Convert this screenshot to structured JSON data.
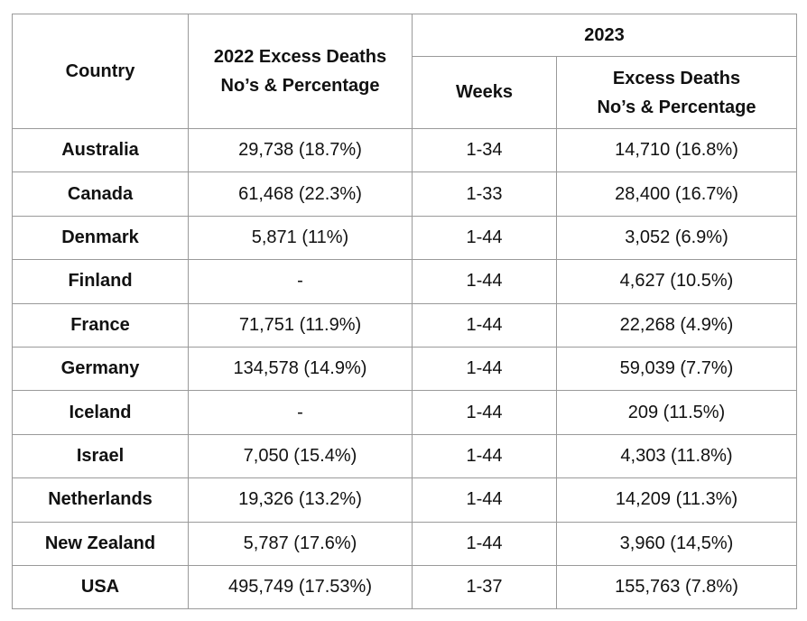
{
  "table": {
    "headers": {
      "country": "Country",
      "excess_2022_line1": "2022 Excess Deaths",
      "excess_2022_line2": "No’s & Percentage",
      "year_2023": "2023",
      "weeks": "Weeks",
      "excess_2023_line1": "Excess Deaths",
      "excess_2023_line2": "No’s & Percentage"
    },
    "rows": [
      {
        "country": "Australia",
        "excess_2022": "29,738 (18.7%)",
        "weeks": "1-34",
        "excess_2023": "14,710 (16.8%)"
      },
      {
        "country": "Canada",
        "excess_2022": "61,468 (22.3%)",
        "weeks": "1-33",
        "excess_2023": "28,400 (16.7%)"
      },
      {
        "country": "Denmark",
        "excess_2022": "5,871 (11%)",
        "weeks": "1-44",
        "excess_2023": "3,052 (6.9%)"
      },
      {
        "country": "Finland",
        "excess_2022": "-",
        "weeks": "1-44",
        "excess_2023": "4,627 (10.5%)"
      },
      {
        "country": "France",
        "excess_2022": "71,751 (11.9%)",
        "weeks": "1-44",
        "excess_2023": "22,268 (4.9%)"
      },
      {
        "country": "Germany",
        "excess_2022": "134,578 (14.9%)",
        "weeks": "1-44",
        "excess_2023": "59,039 (7.7%)"
      },
      {
        "country": "Iceland",
        "excess_2022": "-",
        "weeks": "1-44",
        "excess_2023": "209 (11.5%)"
      },
      {
        "country": "Israel",
        "excess_2022": "7,050 (15.4%)",
        "weeks": "1-44",
        "excess_2023": "4,303 (11.8%)"
      },
      {
        "country": "Netherlands",
        "excess_2022": "19,326 (13.2%)",
        "weeks": "1-44",
        "excess_2023": "14,209 (11.3%)"
      },
      {
        "country": "New Zealand",
        "excess_2022": "5,787 (17.6%)",
        "weeks": "1-44",
        "excess_2023": "3,960 (14,5%)"
      },
      {
        "country": "USA",
        "excess_2022": "495,749 (17.53%)",
        "weeks": "1-37",
        "excess_2023": "155,763 (7.8%)"
      }
    ]
  }
}
